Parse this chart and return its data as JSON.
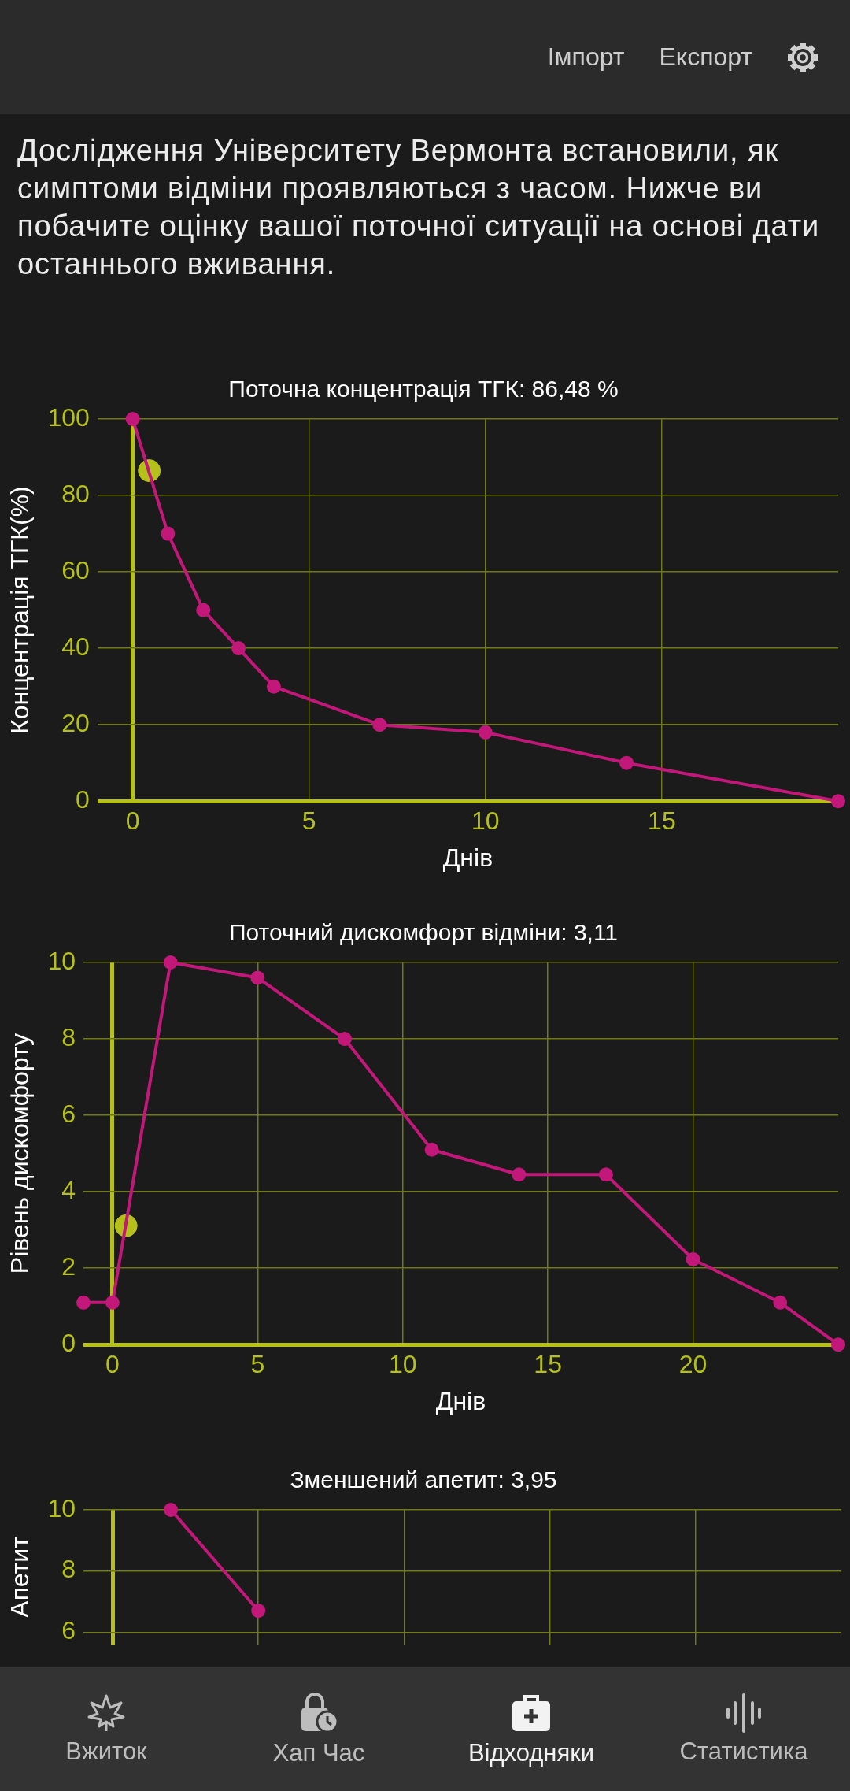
{
  "chart_data": [
    {
      "type": "other",
      "annotations": [
        "Імпорт",
        "Експорт",
        "Дослідження Університету Вермонта встановили, як симптоми відміни проявляються з часом. Нижче ви побачите оцінку вашої поточної ситуації на основі дати останнього вживання."
      ]
    },
    {
      "type": "line",
      "title": "Поточна концентрація ТГК: 86,48 %",
      "xlabel": "Днів",
      "ylabel": "Концентрація ТГК(%)",
      "xlim": [
        -1,
        20
      ],
      "ylim": [
        0,
        100
      ],
      "xticks": [
        0,
        5,
        10,
        15
      ],
      "yticks": [
        0,
        20,
        40,
        60,
        80,
        100
      ],
      "grid": true,
      "marker": "circle",
      "series": [
        {
          "type": "line",
          "color": "#c2187a",
          "x": [
            0,
            1,
            2,
            3,
            4,
            7,
            10,
            14,
            20
          ],
          "values": [
            100,
            70,
            50,
            40,
            30,
            20,
            18,
            10,
            0
          ]
        },
        {
          "type": "scatter",
          "color": "#b5c11a",
          "x": [
            0.47
          ],
          "values": [
            86.48
          ]
        }
      ]
    },
    {
      "type": "line",
      "title": "Поточний дискомфорт відміни: 3,11",
      "xlabel": "Днів",
      "ylabel": "Рівень дискомфорту",
      "xlim": [
        -1,
        25
      ],
      "ylim": [
        0,
        10
      ],
      "xticks": [
        0,
        5,
        10,
        15,
        20
      ],
      "yticks": [
        0,
        2,
        4,
        6,
        8,
        10
      ],
      "grid": true,
      "marker": "circle",
      "series": [
        {
          "type": "line",
          "color": "#c2187a",
          "x": [
            -1,
            0,
            2,
            5,
            8,
            11,
            14,
            17,
            20,
            23,
            25
          ],
          "values": [
            1.1,
            1.1,
            10,
            9.6,
            8,
            5.1,
            4.45,
            4.45,
            2.23,
            1.1,
            0
          ]
        },
        {
          "type": "scatter",
          "color": "#b5c11a",
          "x": [
            0.47
          ],
          "values": [
            3.11
          ]
        }
      ]
    },
    {
      "type": "line",
      "title": "Зменшений апетит: 3,95",
      "ylabel": "Апетит",
      "xlim": [
        -1,
        25
      ],
      "ylim": [
        5.6,
        10
      ],
      "xticks": [
        0,
        5,
        10,
        15,
        20
      ],
      "yticks": [
        6,
        8,
        10
      ],
      "grid": true,
      "marker": "circle",
      "tick_labels": "y",
      "series": [
        {
          "type": "line",
          "color": "#c2187a",
          "x": [
            2,
            5
          ],
          "values": [
            10,
            6.7
          ]
        }
      ]
    },
    {
      "type": "other",
      "annotations": [
        "Вжиток",
        "Хап Час",
        "Відходняки",
        "Статистика"
      ]
    }
  ]
}
